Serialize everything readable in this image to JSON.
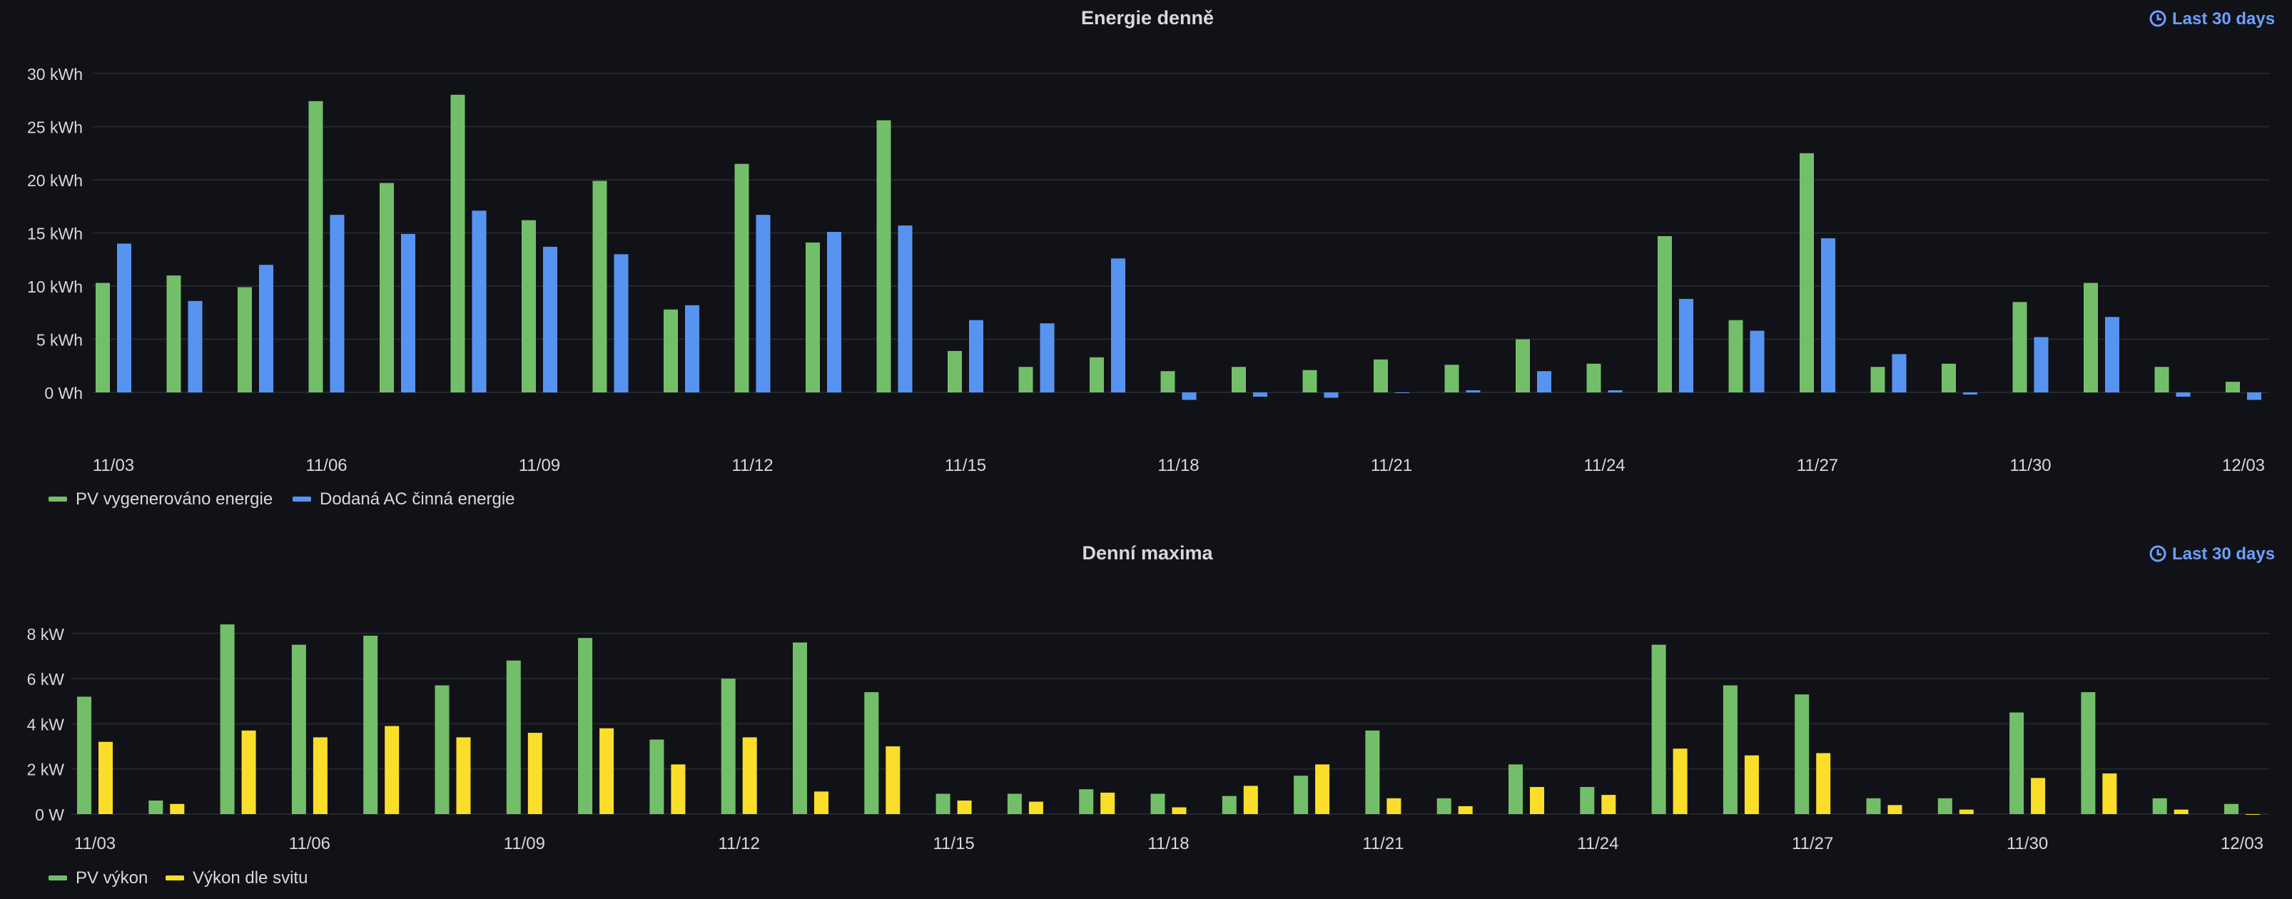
{
  "panels": [
    {
      "title": "Energie denně",
      "time_range_label": "Last 30 days",
      "icon": "clock-icon"
    },
    {
      "title": "Denní maxima",
      "time_range_label": "Last 30 days",
      "icon": "clock-icon"
    }
  ],
  "colors": {
    "background": "#111217",
    "grid": "#24262c",
    "text": "#d8d9da",
    "link": "#6e9fff",
    "green": "#73bf69",
    "blue": "#5794f2",
    "yellow": "#fade2a"
  },
  "chart_data": [
    {
      "type": "bar",
      "title": "Energie denně",
      "x_tick_labels": [
        "11/03",
        "11/06",
        "11/09",
        "11/12",
        "11/15",
        "11/18",
        "11/21",
        "11/24",
        "11/27",
        "11/30",
        "12/03"
      ],
      "categories": [
        "11/03",
        "11/04",
        "11/05",
        "11/06",
        "11/07",
        "11/08",
        "11/09",
        "11/10",
        "11/11",
        "11/12",
        "11/13",
        "11/14",
        "11/15",
        "11/16",
        "11/17",
        "11/18",
        "11/19",
        "11/20",
        "11/21",
        "11/22",
        "11/23",
        "11/24",
        "11/25",
        "11/26",
        "11/27",
        "11/28",
        "11/29",
        "11/30",
        "12/01",
        "12/02"
      ],
      "y_ticks": [
        "0 Wh",
        "5 kWh",
        "10 kWh",
        "15 kWh",
        "20 kWh",
        "25 kWh",
        "30 kWh"
      ],
      "ylim": [
        -2,
        30
      ],
      "unit": "kWh",
      "grid": true,
      "legend_position": "bottom-left",
      "series": [
        {
          "name": "PV vygenerováno energie",
          "color": "#73bf69",
          "values": [
            10.3,
            11.0,
            9.9,
            27.4,
            19.7,
            28.0,
            16.2,
            19.9,
            7.8,
            21.5,
            14.1,
            25.6,
            3.9,
            2.4,
            3.3,
            2.0,
            2.4,
            2.1,
            3.1,
            2.6,
            5.0,
            2.7,
            14.7,
            6.8,
            22.5,
            2.4,
            2.7,
            8.5,
            10.3,
            2.4
          ]
        },
        {
          "name": "Dodaná AC činná energie",
          "color": "#5794f2",
          "values": [
            14.0,
            8.6,
            12.0,
            16.7,
            14.9,
            17.1,
            13.7,
            13.0,
            8.2,
            16.7,
            15.1,
            15.7,
            6.8,
            6.5,
            12.6,
            -0.7,
            -0.4,
            -0.5,
            0,
            0.2,
            2.0,
            0.2,
            8.8,
            5.8,
            14.5,
            3.6,
            -0.2,
            5.2,
            7.1,
            -0.4
          ]
        }
      ],
      "extra": {
        "pv_last_day": 1.0,
        "ac_last_day": -0.7
      }
    },
    {
      "type": "bar",
      "title": "Denní maxima",
      "x_tick_labels": [
        "11/03",
        "11/06",
        "11/09",
        "11/12",
        "11/15",
        "11/18",
        "11/21",
        "11/24",
        "11/27",
        "11/30",
        "12/03"
      ],
      "categories": [
        "11/03",
        "11/04",
        "11/05",
        "11/06",
        "11/07",
        "11/08",
        "11/09",
        "11/10",
        "11/11",
        "11/12",
        "11/13",
        "11/14",
        "11/15",
        "11/16",
        "11/17",
        "11/18",
        "11/19",
        "11/20",
        "11/21",
        "11/22",
        "11/23",
        "11/24",
        "11/25",
        "11/26",
        "11/27",
        "11/28",
        "11/29",
        "11/30",
        "12/01",
        "12/02",
        "12/03"
      ],
      "y_ticks": [
        "0 W",
        "2 kW",
        "4 kW",
        "6 kW",
        "8 kW"
      ],
      "ylim": [
        0,
        8.5
      ],
      "unit": "kW",
      "grid": true,
      "legend_position": "bottom-left",
      "series": [
        {
          "name": "PV výkon",
          "color": "#73bf69",
          "values": [
            5.2,
            0.6,
            8.4,
            7.5,
            7.9,
            5.7,
            6.8,
            7.8,
            3.3,
            6.0,
            7.6,
            5.4,
            0.9,
            0.9,
            1.1,
            0.9,
            0.8,
            1.7,
            3.7,
            0.7,
            2.2,
            1.2,
            7.5,
            5.7,
            5.3,
            0.7,
            0.7,
            4.5,
            5.4,
            0.7,
            0.45
          ]
        },
        {
          "name": "Výkon dle svitu",
          "color": "#fade2a",
          "values": [
            3.2,
            0.45,
            3.7,
            3.4,
            3.9,
            3.4,
            3.6,
            3.8,
            2.2,
            3.4,
            1.0,
            3.0,
            0.6,
            0.55,
            0.95,
            0.3,
            1.25,
            2.2,
            0.7,
            0.35,
            1.2,
            0.85,
            2.9,
            2.6,
            2.7,
            0.4,
            0.2,
            1.6,
            1.8,
            0.2,
            0
          ]
        }
      ]
    }
  ]
}
